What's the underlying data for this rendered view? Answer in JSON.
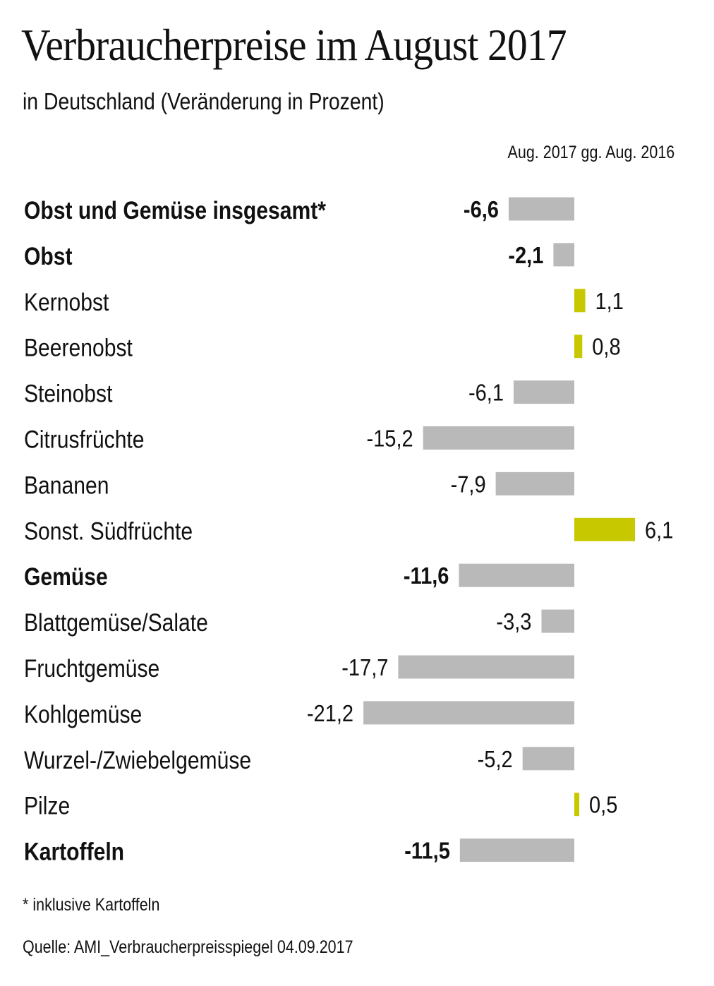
{
  "colors": {
    "negative": "#b9b9b9",
    "positive": "#c8c800",
    "text": "#111111"
  },
  "chart_data": {
    "type": "bar",
    "orientation": "horizontal",
    "title": "Verbraucherpreise im August 2017",
    "subtitle": "in Deutschland (Veränderung in Prozent)",
    "series_label": "Aug. 2017 gg. Aug. 2016",
    "categories": [
      "Obst und Gemüse insgesamt*",
      "Obst",
      "Kernobst",
      "Beerenobst",
      "Steinobst",
      "Citrusfrüchte",
      "Bananen",
      "Sonst. Südfrüchte",
      "Gemüse",
      "Blattgemüse/Salate",
      "Fruchtgemüse",
      "Kohlgemüse",
      "Wurzel-/Zwiebelgemüse",
      "Pilze",
      "Kartoffeln"
    ],
    "values": [
      -6.6,
      -2.1,
      1.1,
      0.8,
      -6.1,
      -15.2,
      -7.9,
      6.1,
      -11.6,
      -3.3,
      -17.7,
      -21.2,
      -5.2,
      0.5,
      -11.5
    ],
    "value_labels": [
      "-6,6",
      "-2,1",
      "1,1",
      "0,8",
      "-6,1",
      "-15,2",
      "-7,9",
      "6,1",
      "-11,6",
      "-3,3",
      "-17,7",
      "-21,2",
      "-5,2",
      "0,5",
      "-11,5"
    ],
    "emphasized": [
      true,
      true,
      false,
      false,
      false,
      false,
      false,
      false,
      true,
      false,
      false,
      false,
      false,
      false,
      true
    ],
    "footnote": "* inklusive Kartoffeln",
    "source": "Quelle: AMI_Verbraucherpreisspiegel 04.09.2017"
  }
}
